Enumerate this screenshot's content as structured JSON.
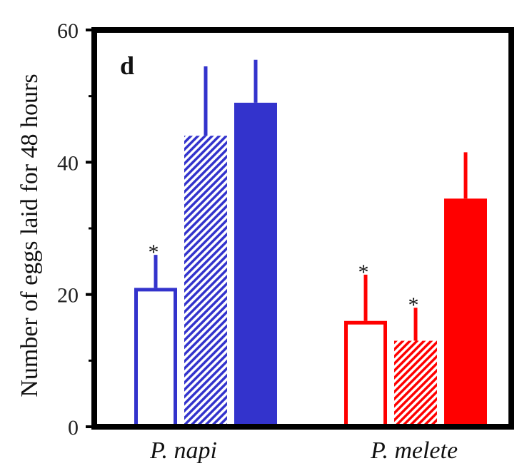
{
  "chart_data": {
    "type": "bar",
    "panel_label": "d",
    "ylabel": "Number of eggs laid for 48 hours",
    "xlabel": "",
    "ylim": [
      0,
      60
    ],
    "yticks": [
      0,
      20,
      40,
      60
    ],
    "grid": false,
    "categories": [
      "P. napi",
      "P. melete"
    ],
    "groups": [
      {
        "category": "P. napi",
        "color": "#3333cc",
        "bars": [
          {
            "style": "open",
            "value": 21,
            "error": 5,
            "star": "*"
          },
          {
            "style": "hatched",
            "value": 44,
            "error": 10.5,
            "star": ""
          },
          {
            "style": "solid",
            "value": 49,
            "error": 6.5,
            "star": ""
          }
        ]
      },
      {
        "category": "P. melete",
        "color": "#ff0000",
        "bars": [
          {
            "style": "open",
            "value": 16,
            "error": 7,
            "star": "*"
          },
          {
            "style": "hatched",
            "value": 13,
            "error": 5,
            "star": "*"
          },
          {
            "style": "solid",
            "value": 34.5,
            "error": 7,
            "star": ""
          }
        ]
      }
    ]
  }
}
